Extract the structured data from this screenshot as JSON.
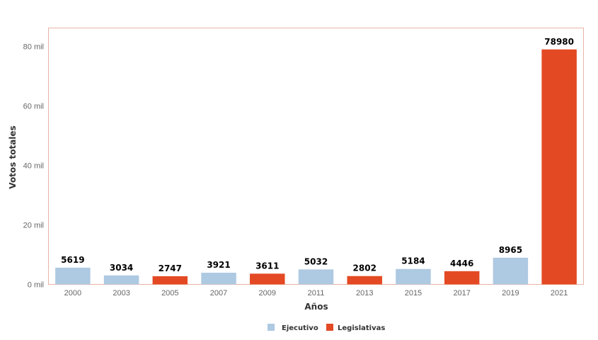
{
  "chart_data": {
    "type": "bar",
    "categories": [
      "2000",
      "2003",
      "2005",
      "2007",
      "2009",
      "2011",
      "2013",
      "2015",
      "2017",
      "2019",
      "2021"
    ],
    "values": [
      5619,
      3034,
      2747,
      3921,
      3611,
      5032,
      2802,
      5184,
      4446,
      8965,
      78980
    ],
    "value_labels": [
      "5619",
      "3034",
      "2747",
      "3921",
      "3611",
      "5032",
      "2802",
      "5184",
      "4446",
      "8965",
      "78980"
    ],
    "groups": [
      "Ejecutivo",
      "Ejecutivo",
      "Legislativas",
      "Ejecutivo",
      "Legislativas",
      "Ejecutivo",
      "Legislativas",
      "Ejecutivo",
      "Legislativas",
      "Ejecutivo",
      "Legislativas"
    ],
    "xlabel": "Años",
    "ylabel": "Votos totales",
    "ylim": [
      0,
      86000
    ],
    "yticks": [
      0,
      20000,
      40000,
      60000,
      80000
    ],
    "ytick_labels": [
      "0 mil",
      "20 mil",
      "40 mil",
      "60 mil",
      "80 mil"
    ],
    "legend": [
      {
        "name": "Ejecutivo",
        "color": "#aec9e2"
      },
      {
        "name": "Legislativas",
        "color": "#e34a24"
      }
    ],
    "legend_position": "bottom",
    "grid": false
  },
  "colors": {
    "Ejecutivo": "#aec9e2",
    "Legislativas": "#e34a24",
    "frame": "#e8b4a6"
  }
}
